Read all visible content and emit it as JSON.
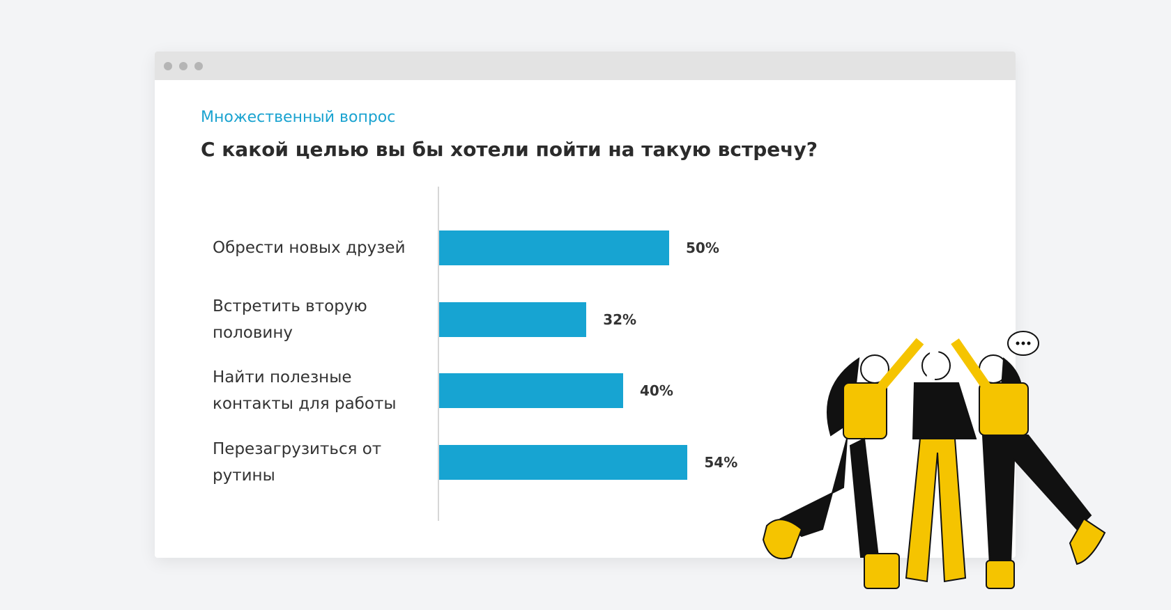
{
  "chart_data": {
    "type": "bar",
    "orientation": "horizontal",
    "subtitle": "Множественный вопрос",
    "title": "С какой целью вы бы хотели пойти на такую встречу?",
    "categories": [
      "Обрести новых друзей",
      "Встретить вторую половину",
      "Найти полезные контакты для работы",
      "Перезагрузиться от рутины"
    ],
    "values": [
      50,
      32,
      40,
      54
    ],
    "value_labels": [
      "50%",
      "32%",
      "40%",
      "54%"
    ],
    "color": "#17a4d2"
  }
}
